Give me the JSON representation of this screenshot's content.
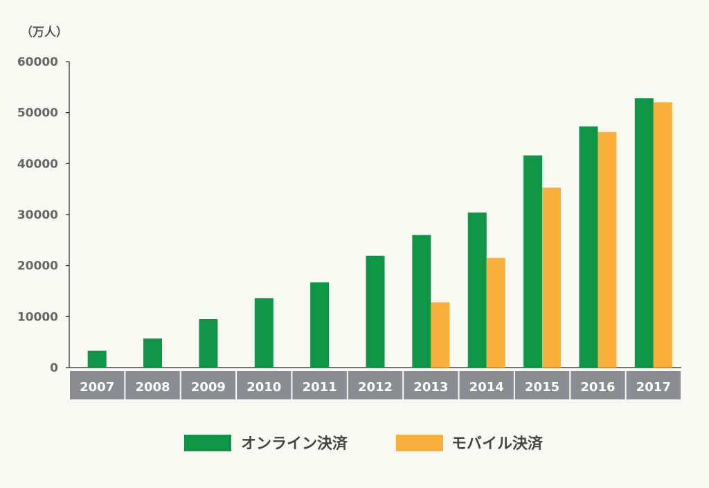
{
  "chart_data": {
    "type": "bar",
    "unit_label": "（万人）",
    "categories": [
      "2007",
      "2008",
      "2009",
      "2010",
      "2011",
      "2012",
      "2013",
      "2014",
      "2015",
      "2016",
      "2017"
    ],
    "series": [
      {
        "name": "オンライン決済",
        "color": "#0e9545",
        "values": [
          3300,
          5700,
          9500,
          13600,
          16700,
          21900,
          26000,
          30400,
          41600,
          47300,
          52800
        ]
      },
      {
        "name": "モバイル決済",
        "color": "#f9b03b",
        "values": [
          null,
          null,
          null,
          null,
          null,
          null,
          12800,
          21500,
          35300,
          46200,
          52000
        ]
      }
    ],
    "yticks": [
      "0",
      "10000",
      "20000",
      "30000",
      "40000",
      "50000",
      "60000"
    ],
    "ylim": [
      0,
      60000
    ],
    "grid": false,
    "legend_position": "bottom",
    "category_band_color": "#8c8d92"
  }
}
